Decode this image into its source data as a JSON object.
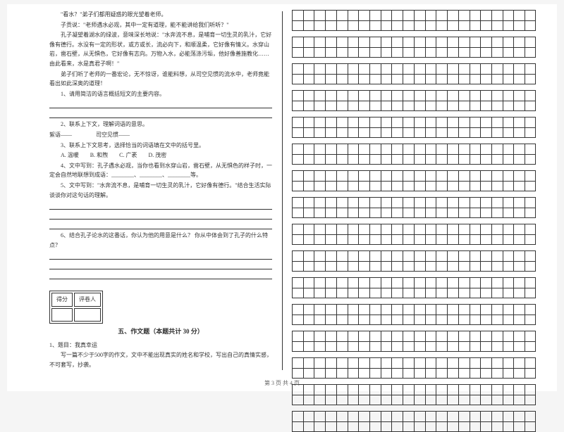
{
  "passage": {
    "p1": "\"看水？\"弟子们都用疑惑的眼光望着老师。",
    "p2": "子贡说：\"老师遇水必观，其中一定有道理，能不能讲给我们听听？\"",
    "p3": "孔子凝望着湖水的绿波，意味深长地说：\"水奔流不息，是哺育一切生灵的乳汁，它好像有德行。水没有一定的形状，或方或长，流必向下，和顺温柔，它好像有情义。水穿山岩，凿石壁，从无惧色，它好像有志向。万物入水，必能荡涤污垢，他好像善施教化……由此看来，水是真君子啊！\"",
    "p4": "弟子们听了老师的一番宏论，无不惊讶，谁能料想，从司空见惯的流水中，老师竟能看出如此深奥的道理！"
  },
  "questions": {
    "q1": "1、请用简洁的语言概括短文的主要内容。",
    "q2": "2、联系上下文，理解词语的意思。",
    "q2a": "絮语——",
    "q2b": "司空见惯——",
    "q3": "3、联系上下文思考，选择恰当的词语填在文中的括号里。",
    "q3opts": "A. 温暖　　B. 和煦　　C. 广袤　　D. 茂密",
    "q4": "4、文中写到：孔子遇水必观，当你也看到水穿山岩，凿石壁，从无惧色的样子时，一定会自然地联想到成语：________、________、________等。",
    "q5": "5、文中写到：\"水奔流不息，是哺育一切生灵的乳汁，它好像有德行。\"结合生活实际谈谈你对这句话的理解。",
    "q6": "6、结合孔子论水的这番话，你认为他的用意是什么？ 你从中体会到了孔子的什么特点？"
  },
  "section5": {
    "score_labels": {
      "score": "得分",
      "grader": "评卷人"
    },
    "title": "五、作文题（本题共计 30 分）",
    "prompt_head": "1、题目：我真幸运",
    "prompt_body": "写一篇不少于500字的作文，文中不能出现真实的姓名和学校，写出自己的真情实感，不可套写，抄袭。"
  },
  "grid": {
    "cols": 22,
    "rows_per_set": 2,
    "sets": 16
  },
  "footer": "第 3 页  共 4 页",
  "colors": {
    "text": "#333333",
    "border": "#333333",
    "bg": "#ffffff"
  }
}
